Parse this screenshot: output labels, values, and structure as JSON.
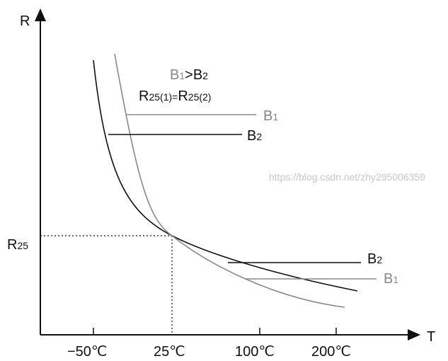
{
  "axes": {
    "y_label": "R",
    "x_label": "T",
    "r25_label": "R",
    "r25_sub": "25"
  },
  "x_ticks": [
    "−50℃",
    "25℃",
    "100℃",
    "200℃"
  ],
  "annotation": {
    "line1": {
      "b1": "B",
      "b1_sub": "1",
      "op": ">",
      "b2": "B",
      "b2_sub": "2"
    },
    "line2": {
      "r1": "R",
      "r1_sub": "25(1)",
      "op": "=",
      "r2": "R",
      "r2_sub": "25(2)"
    }
  },
  "curve_labels": {
    "b1": "B",
    "b1_sub": "1",
    "b2": "B",
    "b2_sub": "2"
  },
  "colors": {
    "b1": "#8a8a8a",
    "b2": "#111111"
  },
  "watermark": "https://blog.csdn.net/zhy295006359"
}
